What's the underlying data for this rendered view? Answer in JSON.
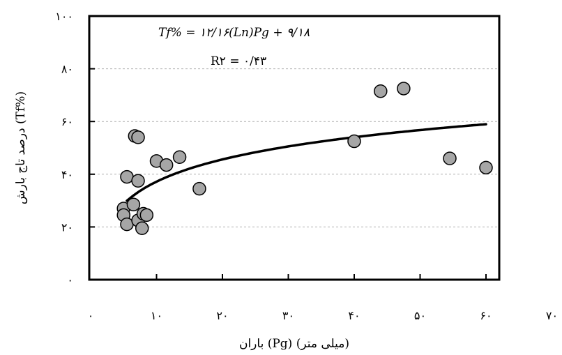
{
  "chart_data": {
    "type": "scatter",
    "title": "",
    "xlabel": "باران (Pg) (میلی متر)",
    "ylabel": "درصد تاج بارش (Tf%)",
    "xlim": [
      0,
      60
    ],
    "ylim": [
      0,
      100
    ],
    "x_ticks": [
      "۰",
      "۱۰",
      "۲۰",
      "۳۰",
      "۴۰",
      "۵۰",
      "۶۰",
      "۷۰"
    ],
    "y_ticks": [
      "۰",
      "۲۰",
      "۴۰",
      "۶۰",
      "۸۰",
      "۱۰۰"
    ],
    "grid": "horizontal-dashed",
    "equation": "Tf% = ۱۲/۱۶(Ln)Pg + ۹/۱۸",
    "r_squared": "R۲ = ۰/۴۳",
    "series": [
      {
        "marker": "circle",
        "color": "#a6a6a6",
        "points": [
          [
            5.0,
            27.0
          ],
          [
            5.0,
            24.5
          ],
          [
            5.5,
            21.0
          ],
          [
            5.5,
            39.0
          ],
          [
            6.5,
            28.5
          ],
          [
            6.7,
            54.5
          ],
          [
            7.2,
            54.0
          ],
          [
            7.2,
            37.5
          ],
          [
            7.2,
            22.5
          ],
          [
            7.8,
            19.5
          ],
          [
            8.0,
            25.0
          ],
          [
            8.5,
            24.5
          ],
          [
            10.0,
            45.0
          ],
          [
            11.5,
            43.5
          ],
          [
            13.5,
            46.5
          ],
          [
            16.5,
            34.5
          ],
          [
            40.0,
            52.5
          ],
          [
            44.0,
            71.5
          ],
          [
            47.5,
            72.5
          ],
          [
            54.5,
            46.0
          ],
          [
            60.0,
            42.5
          ]
        ]
      },
      {
        "type": "line",
        "role": "log-fit",
        "color": "#000000",
        "x_range": [
          5.5,
          60
        ],
        "a": 12.16,
        "b": 9.18
      }
    ]
  }
}
